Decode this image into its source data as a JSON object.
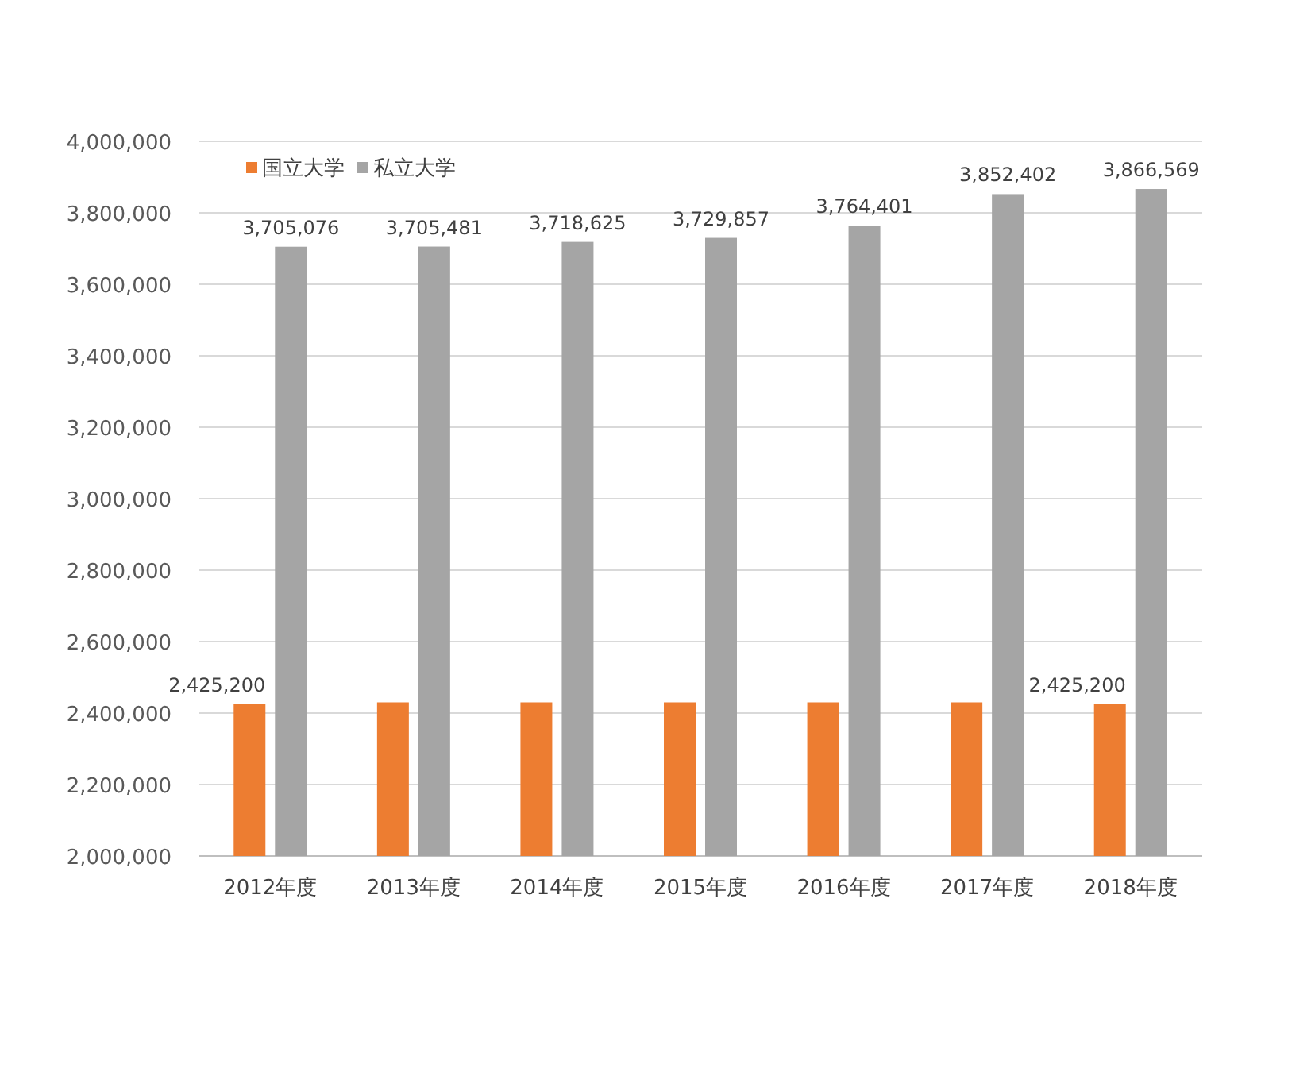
{
  "chart_data": {
    "type": "bar",
    "categories": [
      "2012年度",
      "2013年度",
      "2014年度",
      "2015年度",
      "2016年度",
      "2017年度",
      "2018年度"
    ],
    "series": [
      {
        "name": "国立大学",
        "color": "#ed7d31",
        "values": [
          2425200,
          2430000,
          2430000,
          2430000,
          2430000,
          2430000,
          2425200
        ],
        "value_labels": [
          "2,425,200",
          null,
          null,
          null,
          null,
          null,
          "2,425,200"
        ]
      },
      {
        "name": "私立大学",
        "color": "#a5a5a5",
        "values": [
          3705076,
          3705481,
          3718625,
          3729857,
          3764401,
          3852402,
          3866569
        ],
        "value_labels": [
          "3,705,076",
          "3,705,481",
          "3,718,625",
          "3,729,857",
          "3,764,401",
          "3,852,402",
          "3,866,569"
        ]
      }
    ],
    "ylim": [
      2000000,
      4000000
    ],
    "yticks": [
      {
        "value": 2000000,
        "label": "2,000,000"
      },
      {
        "value": 2200000,
        "label": "2,200,000"
      },
      {
        "value": 2400000,
        "label": "2,400,000"
      },
      {
        "value": 2600000,
        "label": "2,600,000"
      },
      {
        "value": 2800000,
        "label": "2,800,000"
      },
      {
        "value": 3000000,
        "label": "3,000,000"
      },
      {
        "value": 3200000,
        "label": "3,200,000"
      },
      {
        "value": 3400000,
        "label": "3,400,000"
      },
      {
        "value": 3600000,
        "label": "3,600,000"
      },
      {
        "value": 3800000,
        "label": "3,800,000"
      },
      {
        "value": 4000000,
        "label": "4,000,000"
      }
    ],
    "grid": "y",
    "legend": "top left"
  }
}
